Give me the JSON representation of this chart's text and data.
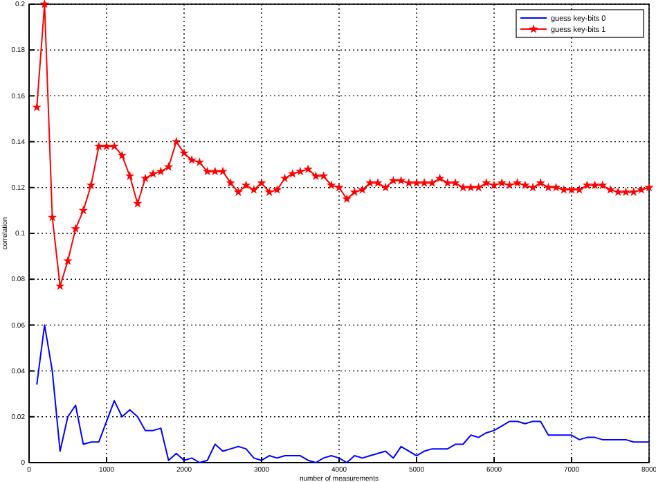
{
  "chart_data": {
    "type": "line",
    "xlabel": "number of measurements",
    "ylabel": "correlation",
    "x": [
      100,
      200,
      300,
      400,
      500,
      600,
      700,
      800,
      900,
      1000,
      1100,
      1200,
      1300,
      1400,
      1500,
      1600,
      1700,
      1800,
      1900,
      2000,
      2100,
      2200,
      2300,
      2400,
      2500,
      2600,
      2700,
      2800,
      2900,
      3000,
      3100,
      3200,
      3300,
      3400,
      3500,
      3600,
      3700,
      3800,
      3900,
      4000,
      4100,
      4200,
      4300,
      4400,
      4500,
      4600,
      4700,
      4800,
      4900,
      5000,
      5100,
      5200,
      5300,
      5400,
      5500,
      5600,
      5700,
      5800,
      5900,
      6000,
      6100,
      6200,
      6300,
      6400,
      6500,
      6600,
      6700,
      6800,
      6900,
      7000,
      7100,
      7200,
      7300,
      7400,
      7500,
      7600,
      7700,
      7800,
      7900,
      8000
    ],
    "series": [
      {
        "name": "guess key-bits 0",
        "color": "#0000ff",
        "marker": "none",
        "values": [
          0.034,
          0.06,
          0.04,
          0.005,
          0.02,
          0.025,
          0.008,
          0.009,
          0.009,
          0.018,
          0.027,
          0.02,
          0.023,
          0.02,
          0.014,
          0.014,
          0.015,
          0.001,
          0.004,
          0.001,
          0.002,
          0.0,
          0.001,
          0.008,
          0.005,
          0.006,
          0.007,
          0.006,
          0.002,
          0.001,
          0.003,
          0.002,
          0.003,
          0.003,
          0.003,
          0.001,
          0.0,
          0.002,
          0.003,
          0.002,
          0.0,
          0.003,
          0.002,
          0.003,
          0.004,
          0.005,
          0.002,
          0.007,
          0.005,
          0.003,
          0.005,
          0.006,
          0.006,
          0.006,
          0.008,
          0.008,
          0.012,
          0.011,
          0.013,
          0.014,
          0.016,
          0.018,
          0.018,
          0.017,
          0.018,
          0.018,
          0.012,
          0.012,
          0.012,
          0.012,
          0.01,
          0.011,
          0.011,
          0.01,
          0.01,
          0.01,
          0.01,
          0.009,
          0.009,
          0.009
        ]
      },
      {
        "name": "guess key-bits 1",
        "color": "#ff0000",
        "marker": "star",
        "values": [
          0.155,
          0.2,
          0.107,
          0.077,
          0.088,
          0.102,
          0.11,
          0.121,
          0.138,
          0.138,
          0.138,
          0.134,
          0.125,
          0.113,
          0.124,
          0.126,
          0.127,
          0.129,
          0.14,
          0.135,
          0.132,
          0.131,
          0.127,
          0.127,
          0.127,
          0.122,
          0.118,
          0.121,
          0.119,
          0.122,
          0.118,
          0.119,
          0.124,
          0.126,
          0.127,
          0.128,
          0.125,
          0.125,
          0.121,
          0.12,
          0.115,
          0.118,
          0.119,
          0.122,
          0.122,
          0.12,
          0.123,
          0.123,
          0.122,
          0.122,
          0.122,
          0.122,
          0.124,
          0.122,
          0.122,
          0.12,
          0.12,
          0.12,
          0.122,
          0.121,
          0.122,
          0.121,
          0.122,
          0.121,
          0.12,
          0.122,
          0.12,
          0.12,
          0.119,
          0.119,
          0.119,
          0.121,
          0.121,
          0.121,
          0.119,
          0.118,
          0.118,
          0.118,
          0.119,
          0.12
        ]
      }
    ],
    "xlim": [
      0,
      8000
    ],
    "xticks": [
      0,
      1000,
      2000,
      3000,
      4000,
      5000,
      6000,
      7000,
      8000
    ],
    "ylim": [
      0,
      0.2
    ],
    "yticks": [
      0,
      0.02,
      0.04,
      0.06,
      0.08,
      0.1,
      0.12,
      0.14,
      0.16,
      0.18,
      0.2
    ],
    "grid": true,
    "line_style": "solid",
    "legend": "top right"
  }
}
